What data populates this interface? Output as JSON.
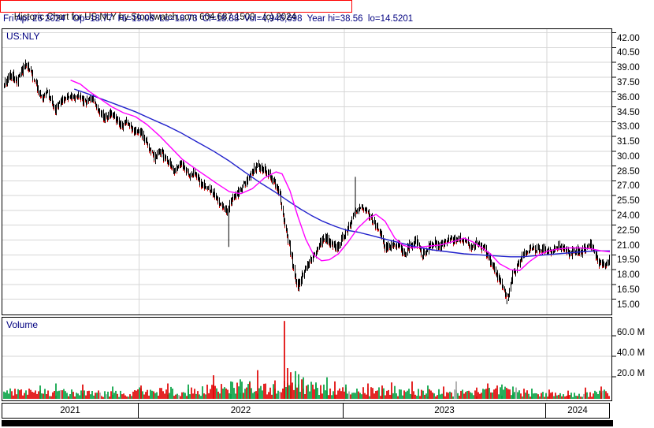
{
  "header": {
    "title_line": "Historic Chart for US:NLY by Stockwatch.com 604.687.1500 - (c) 2024",
    "info_line": "Fri Apr 26 2024   Op=18.77  Hi=19.08  Lo=18.73  Cl=18.88  Vol=4,946,698  Year hi=38.56  lo=14.5201",
    "title_color": "#000000",
    "title_box_border_color": "#ff0000",
    "info_color": "#000080"
  },
  "price_panel": {
    "symbol_label": "US:NLY"
  },
  "volume_panel": {
    "label": "Volume"
  },
  "chart_data": {
    "type": "candlestick",
    "title": "Historic Chart for US:NLY",
    "symbol": "US:NLY",
    "date": "Fri Apr 26 2024",
    "quote": {
      "open": 18.77,
      "high": 19.08,
      "low": 18.73,
      "close": 18.88,
      "volume": "4,946,698",
      "year_high": 38.56,
      "year_low": 14.5201
    },
    "price_axis": {
      "min": 15.0,
      "max": 42.0,
      "step": 1.5,
      "tick_labels": [
        "42.00",
        "40.50",
        "39.00",
        "37.50",
        "36.00",
        "34.50",
        "33.00",
        "31.50",
        "30.00",
        "28.50",
        "27.00",
        "25.50",
        "24.00",
        "22.50",
        "21.00",
        "19.50",
        "18.00",
        "16.50",
        "15.00"
      ]
    },
    "volume_axis": {
      "tick_labels": [
        "60.0 M",
        "40.0 M",
        "20.0 M"
      ],
      "tick_values_millions": [
        60,
        40,
        20
      ]
    },
    "x_axis": {
      "year_labels": [
        "2021",
        "2022",
        "2023",
        "2024"
      ],
      "year_boundaries_frac": [
        0,
        0.2245,
        0.5613,
        0.8942,
        1
      ]
    },
    "grid_color": "#d6d6d6",
    "series": {
      "colors": {
        "bar": "#000000",
        "down_tick": "#dd0000",
        "ma_fast": "#ff00ff",
        "ma_slow": "#2222cc"
      },
      "close_keypoints": [
        [
          0.0,
          36.9
        ],
        [
          0.01,
          37.8
        ],
        [
          0.021,
          37.2
        ],
        [
          0.036,
          38.9
        ],
        [
          0.049,
          37.2
        ],
        [
          0.062,
          35.2
        ],
        [
          0.072,
          35.9
        ],
        [
          0.083,
          34.2
        ],
        [
          0.094,
          35.2
        ],
        [
          0.107,
          35.5
        ],
        [
          0.12,
          35.5
        ],
        [
          0.133,
          34.9
        ],
        [
          0.146,
          35.3
        ],
        [
          0.159,
          33.9
        ],
        [
          0.168,
          33.3
        ],
        [
          0.178,
          33.9
        ],
        [
          0.191,
          32.5
        ],
        [
          0.201,
          33.0
        ],
        [
          0.214,
          32.1
        ],
        [
          0.2245,
          31.9
        ],
        [
          0.237,
          30.6
        ],
        [
          0.248,
          29.3
        ],
        [
          0.258,
          30.1
        ],
        [
          0.271,
          28.7
        ],
        [
          0.281,
          28.0
        ],
        [
          0.292,
          28.9
        ],
        [
          0.304,
          27.4
        ],
        [
          0.315,
          27.9
        ],
        [
          0.328,
          26.5
        ],
        [
          0.341,
          26.0
        ],
        [
          0.353,
          25.0
        ],
        [
          0.366,
          23.9
        ],
        [
          0.377,
          25.2
        ],
        [
          0.39,
          26.1
        ],
        [
          0.405,
          27.6
        ],
        [
          0.418,
          28.5
        ],
        [
          0.431,
          28.0
        ],
        [
          0.444,
          26.9
        ],
        [
          0.454,
          25.5
        ],
        [
          0.462,
          22.9
        ],
        [
          0.47,
          20.4
        ],
        [
          0.477,
          18.2
        ],
        [
          0.484,
          16.3
        ],
        [
          0.491,
          17.2
        ],
        [
          0.5,
          18.4
        ],
        [
          0.511,
          19.4
        ],
        [
          0.521,
          20.8
        ],
        [
          0.531,
          21.3
        ],
        [
          0.539,
          20.7
        ],
        [
          0.549,
          20.1
        ],
        [
          0.56,
          21.4
        ],
        [
          0.57,
          22.6
        ],
        [
          0.58,
          23.9
        ],
        [
          0.591,
          24.3
        ],
        [
          0.601,
          23.6
        ],
        [
          0.611,
          22.7
        ],
        [
          0.622,
          21.4
        ],
        [
          0.629,
          20.2
        ],
        [
          0.64,
          20.4
        ],
        [
          0.65,
          20.9
        ],
        [
          0.658,
          19.4
        ],
        [
          0.668,
          20.3
        ],
        [
          0.679,
          21.1
        ],
        [
          0.689,
          19.4
        ],
        [
          0.699,
          20.2
        ],
        [
          0.71,
          20.7
        ],
        [
          0.72,
          20.3
        ],
        [
          0.733,
          21.0
        ],
        [
          0.746,
          21.2
        ],
        [
          0.759,
          20.9
        ],
        [
          0.769,
          20.4
        ],
        [
          0.779,
          20.7
        ],
        [
          0.79,
          20.2
        ],
        [
          0.8,
          19.2
        ],
        [
          0.81,
          17.8
        ],
        [
          0.821,
          16.6
        ],
        [
          0.83,
          15.0
        ],
        [
          0.839,
          17.5
        ],
        [
          0.849,
          18.6
        ],
        [
          0.859,
          19.7
        ],
        [
          0.87,
          20.4
        ],
        [
          0.88,
          20.0
        ],
        [
          0.89,
          20.2
        ],
        [
          0.901,
          19.9
        ],
        [
          0.911,
          20.4
        ],
        [
          0.921,
          20.1
        ],
        [
          0.932,
          19.6
        ],
        [
          0.942,
          19.9
        ],
        [
          0.952,
          19.8
        ],
        [
          0.963,
          20.3
        ],
        [
          0.97,
          20.5
        ],
        [
          0.981,
          18.7
        ],
        [
          0.988,
          18.3
        ],
        [
          0.993,
          18.6
        ],
        [
          1.0,
          18.9
        ]
      ],
      "special_wicks": [
        {
          "f": 0.58,
          "price": 27.4
        },
        {
          "f": 0.371,
          "price": 20.3
        },
        {
          "f": 0.83,
          "price": 14.5
        }
      ],
      "ma_fast_keypoints": [
        [
          0.11,
          37.2
        ],
        [
          0.126,
          36.8
        ],
        [
          0.142,
          36.0
        ],
        [
          0.159,
          35.3
        ],
        [
          0.178,
          34.5
        ],
        [
          0.197,
          33.9
        ],
        [
          0.217,
          33.5
        ],
        [
          0.236,
          32.7
        ],
        [
          0.256,
          31.6
        ],
        [
          0.275,
          30.4
        ],
        [
          0.294,
          29.2
        ],
        [
          0.314,
          28.3
        ],
        [
          0.333,
          27.5
        ],
        [
          0.352,
          26.7
        ],
        [
          0.372,
          25.9
        ],
        [
          0.391,
          25.7
        ],
        [
          0.41,
          26.2
        ],
        [
          0.43,
          27.3
        ],
        [
          0.449,
          27.9
        ],
        [
          0.459,
          27.7
        ],
        [
          0.472,
          26.0
        ],
        [
          0.485,
          23.4
        ],
        [
          0.498,
          21.1
        ],
        [
          0.511,
          19.5
        ],
        [
          0.524,
          18.9
        ],
        [
          0.537,
          19.0
        ],
        [
          0.552,
          19.6
        ],
        [
          0.568,
          20.8
        ],
        [
          0.584,
          22.2
        ],
        [
          0.601,
          23.2
        ],
        [
          0.614,
          23.6
        ],
        [
          0.629,
          22.9
        ],
        [
          0.645,
          21.2
        ],
        [
          0.658,
          20.5
        ],
        [
          0.673,
          20.2
        ],
        [
          0.689,
          20.3
        ],
        [
          0.704,
          20.4
        ],
        [
          0.72,
          20.5
        ],
        [
          0.739,
          20.8
        ],
        [
          0.759,
          21.2
        ],
        [
          0.774,
          20.8
        ],
        [
          0.787,
          20.3
        ],
        [
          0.803,
          19.6
        ],
        [
          0.818,
          18.6
        ],
        [
          0.836,
          18.0
        ],
        [
          0.851,
          17.9
        ],
        [
          0.867,
          18.8
        ],
        [
          0.883,
          19.5
        ],
        [
          0.898,
          19.9
        ],
        [
          0.916,
          20.1
        ],
        [
          0.934,
          20.2
        ],
        [
          0.952,
          20.2
        ],
        [
          0.97,
          20.1
        ],
        [
          0.986,
          19.9
        ],
        [
          1.0,
          19.8
        ]
      ],
      "ma_slow_keypoints": [
        [
          0.116,
          36.3
        ],
        [
          0.139,
          35.8
        ],
        [
          0.165,
          35.2
        ],
        [
          0.191,
          34.6
        ],
        [
          0.217,
          34.0
        ],
        [
          0.242,
          33.3
        ],
        [
          0.268,
          32.6
        ],
        [
          0.294,
          31.8
        ],
        [
          0.32,
          30.9
        ],
        [
          0.346,
          30.0
        ],
        [
          0.372,
          29.0
        ],
        [
          0.397,
          27.9
        ],
        [
          0.423,
          26.8
        ],
        [
          0.449,
          25.8
        ],
        [
          0.468,
          25.0
        ],
        [
          0.488,
          24.2
        ],
        [
          0.507,
          23.5
        ],
        [
          0.526,
          22.9
        ],
        [
          0.546,
          22.4
        ],
        [
          0.565,
          22.0
        ],
        [
          0.584,
          21.8
        ],
        [
          0.604,
          21.5
        ],
        [
          0.629,
          21.1
        ],
        [
          0.655,
          20.7
        ],
        [
          0.681,
          20.3
        ],
        [
          0.707,
          20.0
        ],
        [
          0.733,
          19.8
        ],
        [
          0.759,
          19.6
        ],
        [
          0.784,
          19.5
        ],
        [
          0.81,
          19.4
        ],
        [
          0.836,
          19.3
        ],
        [
          0.855,
          19.3
        ],
        [
          0.875,
          19.4
        ],
        [
          0.894,
          19.5
        ],
        [
          0.914,
          19.6
        ],
        [
          0.933,
          19.7
        ],
        [
          0.952,
          19.8
        ],
        [
          0.978,
          19.9
        ],
        [
          1.0,
          19.9
        ]
      ]
    },
    "volume": {
      "colors": {
        "up": "#00a040",
        "down": "#e00000",
        "neutral": "#a6a6a6"
      },
      "base_keypoints_millions": [
        [
          0,
          6
        ],
        [
          0.05,
          7
        ],
        [
          0.1,
          6
        ],
        [
          0.15,
          5
        ],
        [
          0.2,
          5
        ],
        [
          0.2245,
          7
        ],
        [
          0.27,
          8
        ],
        [
          0.31,
          7
        ],
        [
          0.35,
          10
        ],
        [
          0.4,
          11
        ],
        [
          0.44,
          10
        ],
        [
          0.46,
          13
        ],
        [
          0.49,
          12
        ],
        [
          0.52,
          9
        ],
        [
          0.56,
          7
        ],
        [
          0.6,
          7
        ],
        [
          0.64,
          8
        ],
        [
          0.67,
          6
        ],
        [
          0.7,
          6
        ],
        [
          0.74,
          6
        ],
        [
          0.78,
          5
        ],
        [
          0.81,
          8
        ],
        [
          0.83,
          8
        ],
        [
          0.86,
          6
        ],
        [
          0.9,
          4
        ],
        [
          0.94,
          4
        ],
        [
          0.97,
          5
        ],
        [
          1.0,
          6
        ]
      ],
      "spikes": [
        [
          0.06,
          13,
          "g"
        ],
        [
          0.085,
          15,
          "g"
        ],
        [
          0.13,
          14,
          "r"
        ],
        [
          0.18,
          12,
          "g"
        ],
        [
          0.225,
          13,
          "r"
        ],
        [
          0.27,
          15,
          "r"
        ],
        [
          0.305,
          14,
          "g"
        ],
        [
          0.345,
          23,
          "r"
        ],
        [
          0.375,
          17,
          "g"
        ],
        [
          0.39,
          19,
          "g"
        ],
        [
          0.405,
          16,
          "r"
        ],
        [
          0.418,
          28,
          "r"
        ],
        [
          0.447,
          18,
          "r"
        ],
        [
          0.462,
          76,
          "r"
        ],
        [
          0.468,
          30,
          "r"
        ],
        [
          0.474,
          26,
          "r"
        ],
        [
          0.48,
          27,
          "g"
        ],
        [
          0.487,
          24,
          "g"
        ],
        [
          0.494,
          21,
          "g"
        ],
        [
          0.515,
          16,
          "g"
        ],
        [
          0.533,
          21,
          "g"
        ],
        [
          0.545,
          17,
          "r"
        ],
        [
          0.565,
          14,
          "g"
        ],
        [
          0.6,
          15,
          "r"
        ],
        [
          0.623,
          13,
          "r"
        ],
        [
          0.64,
          16,
          "r"
        ],
        [
          0.673,
          17,
          "r"
        ],
        [
          0.7,
          13,
          "g"
        ],
        [
          0.725,
          12,
          "r"
        ],
        [
          0.747,
          17,
          "x"
        ],
        [
          0.78,
          11,
          "r"
        ],
        [
          0.798,
          15,
          "r"
        ],
        [
          0.822,
          14,
          "g"
        ],
        [
          0.84,
          12,
          "g"
        ],
        [
          0.87,
          10,
          "g"
        ],
        [
          0.9,
          9,
          "r"
        ],
        [
          0.93,
          8,
          "r"
        ],
        [
          0.96,
          11,
          "r"
        ],
        [
          0.985,
          12,
          "r"
        ]
      ]
    }
  }
}
